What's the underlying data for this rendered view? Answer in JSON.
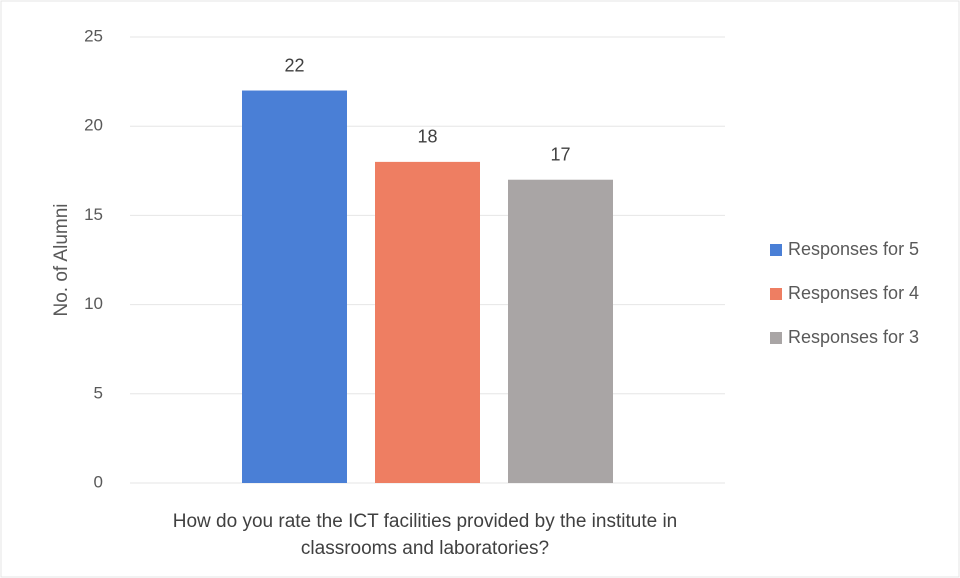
{
  "chart_data": {
    "type": "bar",
    "y_label": "No. of Alumni",
    "categories": [
      "How do you rate the ICT facilities provided by the institute in classrooms and laboratories?"
    ],
    "series": [
      {
        "name": "Responses for 5",
        "color": "#4a7fd6",
        "values": [
          22
        ]
      },
      {
        "name": "Responses for 4",
        "color": "#ee7e62",
        "values": [
          18
        ]
      },
      {
        "name": "Responses for 3",
        "color": "#a9a5a5",
        "values": [
          17
        ]
      }
    ],
    "ylim": [
      0,
      25
    ],
    "yticks": [
      0,
      5,
      10,
      15,
      20,
      25
    ],
    "grid": true,
    "legend": "right"
  }
}
